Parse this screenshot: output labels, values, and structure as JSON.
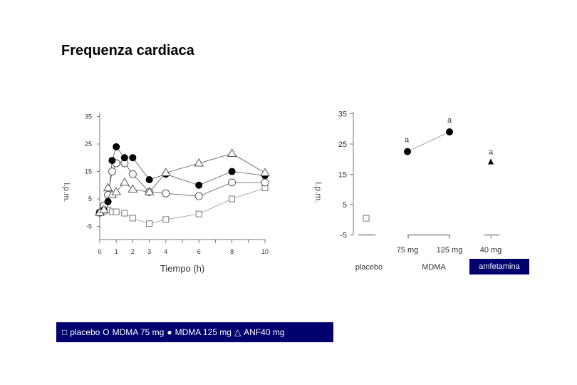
{
  "title": "Frequenza cardiaca",
  "chart_data": [
    {
      "type": "line",
      "title": "",
      "xlabel": "Tiempo (h)",
      "ylabel": "l.p.m.",
      "xlim": [
        0,
        10
      ],
      "ylim": [
        -10,
        35
      ],
      "x_ticks": [
        0,
        1,
        2,
        3,
        4,
        6,
        8,
        10
      ],
      "y_ticks": [
        35,
        25,
        15,
        5,
        -5
      ],
      "grid": false,
      "series": [
        {
          "name": "placebo",
          "marker": "open-square",
          "x": [
            0,
            0.25,
            0.5,
            0.75,
            1,
            1.5,
            2,
            3,
            4,
            6,
            8,
            10
          ],
          "y": [
            0,
            0.5,
            1,
            0.3,
            0.3,
            -0.2,
            -2,
            -4,
            -2.5,
            -0.5,
            5,
            9
          ]
        },
        {
          "name": "MDMA 75 mg",
          "marker": "open-circle",
          "x": [
            0,
            0.25,
            0.5,
            0.75,
            1,
            1.5,
            2,
            3,
            4,
            6,
            8,
            10
          ],
          "y": [
            0,
            2.5,
            6.5,
            15,
            18,
            18,
            14,
            7.5,
            7,
            6,
            11,
            11
          ]
        },
        {
          "name": "MDMA 125 mg",
          "marker": "filled-circle",
          "x": [
            0,
            0.25,
            0.5,
            0.75,
            1,
            1.5,
            2,
            3,
            4,
            6,
            8,
            10
          ],
          "y": [
            0,
            1,
            4,
            19,
            24,
            20,
            20,
            12,
            14,
            10,
            15,
            13.5
          ]
        },
        {
          "name": "ANF40 mg",
          "marker": "open-triangle",
          "x": [
            0,
            0.25,
            0.5,
            0.75,
            1,
            1.5,
            2,
            3,
            4,
            6,
            8,
            10
          ],
          "y": [
            0,
            1,
            9,
            6.5,
            7.5,
            11,
            8.5,
            7.5,
            14.5,
            18,
            21.5,
            14.5
          ]
        }
      ]
    },
    {
      "type": "scatter",
      "title": "",
      "xlabel": "",
      "ylabel": "l.p.m.",
      "ylim": [
        -5,
        35
      ],
      "y_ticks": [
        35,
        25,
        15,
        5,
        -5
      ],
      "categories": [
        "placebo",
        "75 mg",
        "125 mg",
        "40 mg"
      ],
      "groups": [
        "placebo",
        "MDMA",
        "amfetamina"
      ],
      "series": [
        {
          "name": "placebo",
          "marker": "open-square",
          "values": [
            0.5
          ],
          "annotation": ""
        },
        {
          "name": "MDMA",
          "marker": "filled-circle",
          "categories": [
            "75 mg",
            "125 mg"
          ],
          "values": [
            22.5,
            29
          ],
          "annotation": [
            "a",
            "a"
          ]
        },
        {
          "name": "amfetamina",
          "marker": "filled-triangle",
          "categories": [
            "40 mg"
          ],
          "values": [
            19
          ],
          "annotation": [
            "a"
          ]
        }
      ]
    }
  ],
  "left_chart": {
    "xlabel": "Tiempo (h)",
    "ylabel": "l.p.m.",
    "y_ticks": [
      "35",
      "25",
      "15",
      "5",
      "-5"
    ],
    "x_ticks": [
      "0",
      "1",
      "2",
      "3",
      "4",
      "6",
      "8",
      "10"
    ]
  },
  "right_chart": {
    "ylabel": "l.p.m.",
    "y_ticks": [
      "35",
      "25",
      "15",
      "5",
      "-5"
    ],
    "dose_labels": [
      "75 mg",
      "125 mg",
      "40 mg"
    ],
    "group_labels": {
      "placebo": "placebo",
      "mdma": "MDMA",
      "amfetamina": "amfetamina"
    },
    "sig_label": "a"
  },
  "legend": {
    "items": [
      {
        "symbol": "□",
        "label": "placebo"
      },
      {
        "symbol": "O",
        "label": "MDMA 75 mg"
      },
      {
        "symbol": "●",
        "label": "MDMA 125 mg"
      },
      {
        "symbol": "△",
        "label": "ANF40 mg"
      }
    ],
    "bg_color": "#00006e"
  }
}
